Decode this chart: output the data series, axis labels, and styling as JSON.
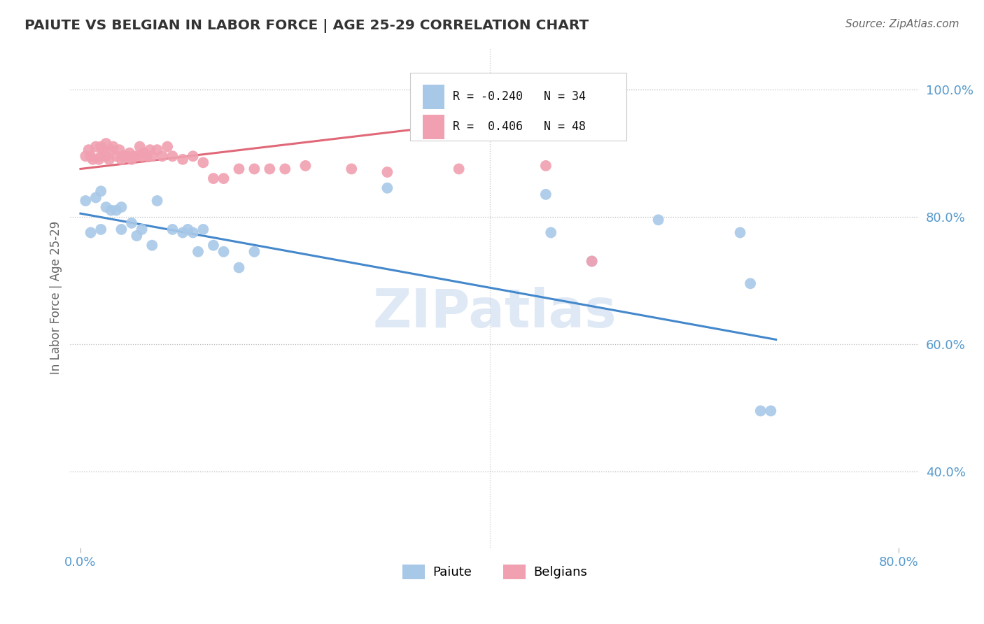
{
  "title": "PAIUTE VS BELGIAN IN LABOR FORCE | AGE 25-29 CORRELATION CHART",
  "source": "Source: ZipAtlas.com",
  "ylabel_label": "In Labor Force | Age 25-29",
  "legend_blue_r": "R = -0.240",
  "legend_blue_n": "N = 34",
  "legend_pink_r": "R =  0.406",
  "legend_pink_n": "N = 48",
  "blue_color": "#A8C8E8",
  "pink_color": "#F0A0B0",
  "blue_line_color": "#4488CC",
  "pink_line_color": "#E06878",
  "tick_color": "#5599CC",
  "watermark": "ZIPatlas",
  "paiute_x": [
    0.005,
    0.01,
    0.015,
    0.02,
    0.02,
    0.025,
    0.03,
    0.035,
    0.04,
    0.04,
    0.05,
    0.055,
    0.06,
    0.07,
    0.075,
    0.09,
    0.1,
    0.105,
    0.11,
    0.115,
    0.12,
    0.13,
    0.14,
    0.155,
    0.17,
    0.3,
    0.455,
    0.46,
    0.5,
    0.565,
    0.645,
    0.655,
    0.665,
    0.675
  ],
  "paiute_y": [
    0.825,
    0.775,
    0.83,
    0.84,
    0.78,
    0.815,
    0.81,
    0.81,
    0.815,
    0.78,
    0.79,
    0.77,
    0.78,
    0.755,
    0.825,
    0.78,
    0.775,
    0.78,
    0.775,
    0.745,
    0.78,
    0.755,
    0.745,
    0.72,
    0.745,
    0.845,
    0.835,
    0.775,
    0.73,
    0.795,
    0.775,
    0.695,
    0.495,
    0.495
  ],
  "belgians_x": [
    0.005,
    0.008,
    0.01,
    0.012,
    0.015,
    0.018,
    0.02,
    0.02,
    0.022,
    0.025,
    0.025,
    0.028,
    0.03,
    0.032,
    0.035,
    0.038,
    0.04,
    0.042,
    0.045,
    0.048,
    0.05,
    0.052,
    0.055,
    0.058,
    0.06,
    0.062,
    0.065,
    0.068,
    0.07,
    0.075,
    0.08,
    0.085,
    0.09,
    0.1,
    0.11,
    0.12,
    0.13,
    0.14,
    0.155,
    0.17,
    0.185,
    0.2,
    0.22,
    0.265,
    0.3,
    0.37,
    0.455,
    0.5
  ],
  "belgians_y": [
    0.895,
    0.905,
    0.895,
    0.89,
    0.91,
    0.89,
    0.895,
    0.91,
    0.905,
    0.895,
    0.915,
    0.89,
    0.905,
    0.91,
    0.895,
    0.905,
    0.89,
    0.895,
    0.895,
    0.9,
    0.89,
    0.895,
    0.895,
    0.91,
    0.895,
    0.9,
    0.895,
    0.905,
    0.895,
    0.905,
    0.895,
    0.91,
    0.895,
    0.89,
    0.895,
    0.885,
    0.86,
    0.86,
    0.875,
    0.875,
    0.875,
    0.875,
    0.88,
    0.875,
    0.87,
    0.875,
    0.88,
    0.73
  ],
  "xlim": [
    -0.01,
    0.82
  ],
  "ylim": [
    0.28,
    1.065
  ],
  "xticks": [
    0.0,
    0.8
  ],
  "yticks": [
    0.4,
    0.6,
    0.8,
    1.0
  ],
  "xticklabels": [
    "0.0%",
    "80.0%"
  ],
  "yticklabels": [
    "40.0%",
    "60.0%",
    "80.0%",
    "100.0%"
  ],
  "blue_trend_x": [
    0.0,
    0.68
  ],
  "blue_trend_y": [
    0.805,
    0.607
  ],
  "pink_trend_x": [
    0.0,
    0.5
  ],
  "pink_trend_y": [
    0.875,
    0.97
  ]
}
